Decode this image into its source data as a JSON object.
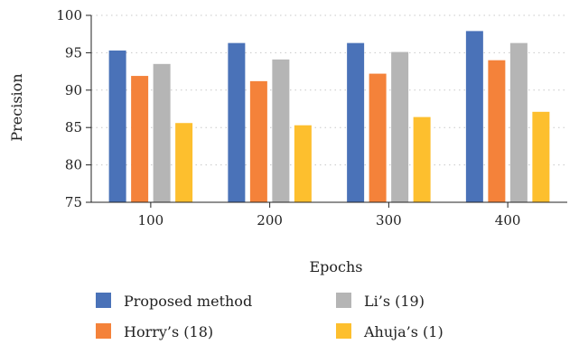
{
  "chart_data": {
    "type": "bar",
    "categories": [
      "100",
      "200",
      "300",
      "400"
    ],
    "series": [
      {
        "name": "Proposed method",
        "values": [
          95.3,
          96.3,
          96.3,
          97.9
        ]
      },
      {
        "name": "Horry’s (18)",
        "values": [
          91.9,
          91.2,
          92.2,
          94.0
        ]
      },
      {
        "name": "Li’s (19)",
        "values": [
          93.5,
          94.1,
          95.1,
          96.3
        ]
      },
      {
        "name": "Ahuja’s (1)",
        "values": [
          85.6,
          85.3,
          86.4,
          87.1
        ]
      }
    ],
    "colors": [
      "#4a72b8",
      "#f4823a",
      "#b5b5b5",
      "#fdbf2e"
    ],
    "xlabel": "Epochs",
    "ylabel": "Precision",
    "ylim": [
      75,
      100
    ],
    "yticks": [
      75,
      80,
      85,
      90,
      95,
      100
    ],
    "grid": true,
    "legend_position": "bottom"
  }
}
